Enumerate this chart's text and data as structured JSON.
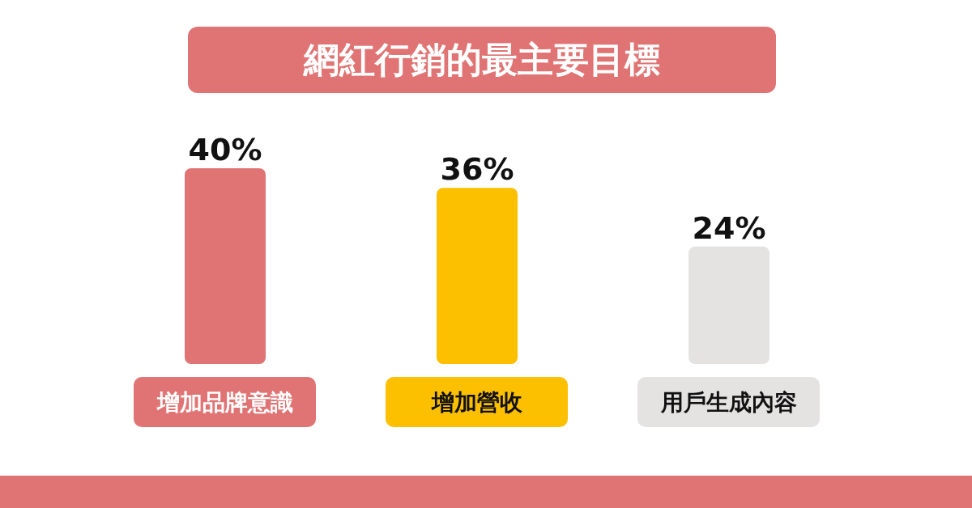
{
  "chart_data": {
    "type": "bar",
    "title": "網紅行銷的最主要目標",
    "categories": [
      "增加品牌意識",
      "增加營收",
      "用戶生成內容"
    ],
    "values": [
      40,
      36,
      24
    ],
    "colors": [
      "#e07474",
      "#fdc000",
      "#e5e2e2"
    ],
    "data_labels": true,
    "value_labels": [
      "40%",
      "36%",
      "24%"
    ],
    "grid": false,
    "legend": false
  }
}
